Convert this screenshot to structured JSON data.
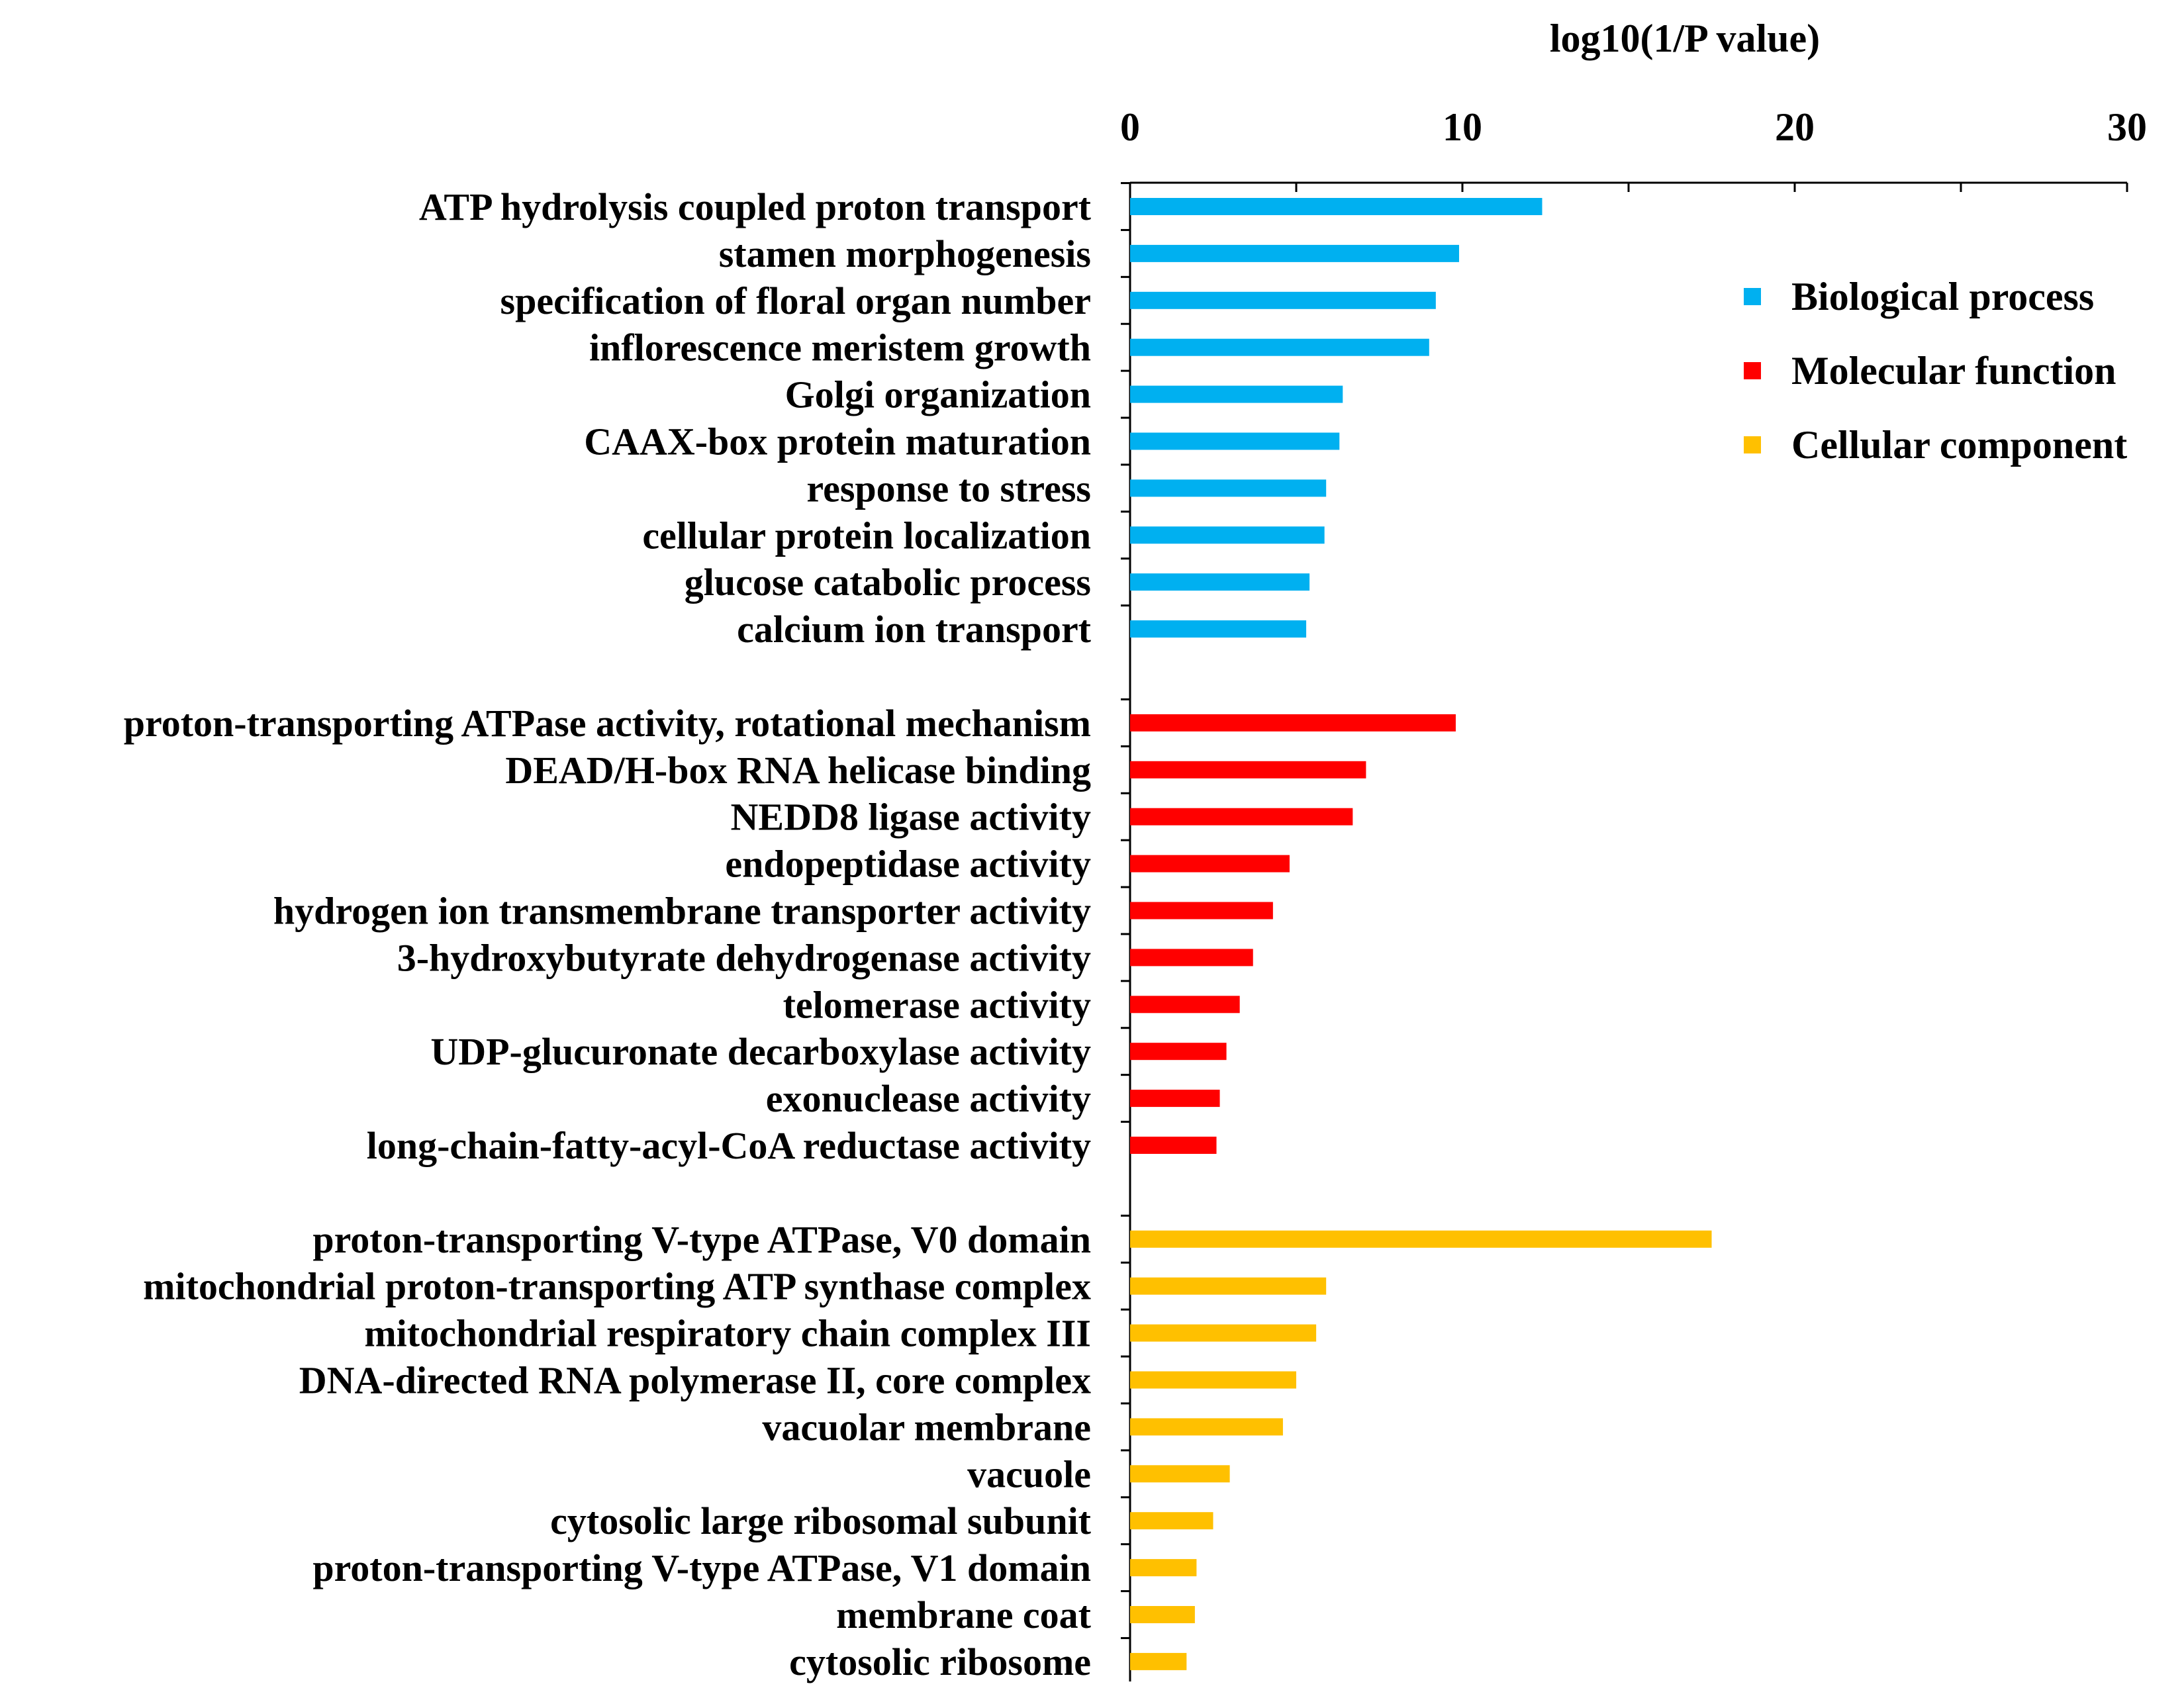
{
  "chart_data": {
    "type": "bar",
    "orientation": "horizontal",
    "xlabel": "log10(1/P value)",
    "xlim": [
      0,
      30
    ],
    "xticks": [
      0,
      10,
      20,
      30
    ],
    "grid": false,
    "legend_position": "top-right",
    "series": [
      {
        "name": "Biological process",
        "color": "#00B0F0",
        "categories": [
          "ATP hydrolysis coupled proton transport",
          "stamen morphogenesis",
          "specification of floral organ number",
          "inflorescence meristem growth",
          "Golgi organization",
          "CAAX-box protein maturation",
          "response to stress",
          "cellular protein localization",
          "glucose catabolic process",
          "calcium ion transport"
        ],
        "values": [
          12.4,
          9.9,
          9.2,
          9.0,
          6.4,
          6.3,
          5.9,
          5.85,
          5.4,
          5.3
        ]
      },
      {
        "name": "Molecular function",
        "color": "#FF0000",
        "categories": [
          "proton-transporting ATPase activity, rotational mechanism",
          "DEAD/H-box RNA helicase binding",
          "NEDD8 ligase activity",
          "endopeptidase activity",
          "hydrogen ion transmembrane transporter activity",
          "3-hydroxybutyrate dehydrogenase activity",
          "telomerase activity",
          "UDP-glucuronate decarboxylase activity",
          "exonuclease activity",
          "long-chain-fatty-acyl-CoA reductase activity"
        ],
        "values": [
          9.8,
          7.1,
          6.7,
          4.8,
          4.3,
          3.7,
          3.3,
          2.9,
          2.7,
          2.6
        ]
      },
      {
        "name": "Cellular component",
        "color": "#FFC000",
        "categories": [
          "proton-transporting V-type ATPase, V0 domain",
          "mitochondrial proton-transporting ATP synthase complex",
          "mitochondrial respiratory chain complex III",
          "DNA-directed RNA polymerase II, core complex",
          "vacuolar membrane",
          "vacuole",
          "cytosolic large ribosomal subunit",
          "proton-transporting V-type ATPase, V1 domain",
          "membrane coat",
          "cytosolic ribosome"
        ],
        "values": [
          17.5,
          5.9,
          5.6,
          5.0,
          4.6,
          3.0,
          2.5,
          2.0,
          1.95,
          1.7
        ]
      }
    ]
  }
}
